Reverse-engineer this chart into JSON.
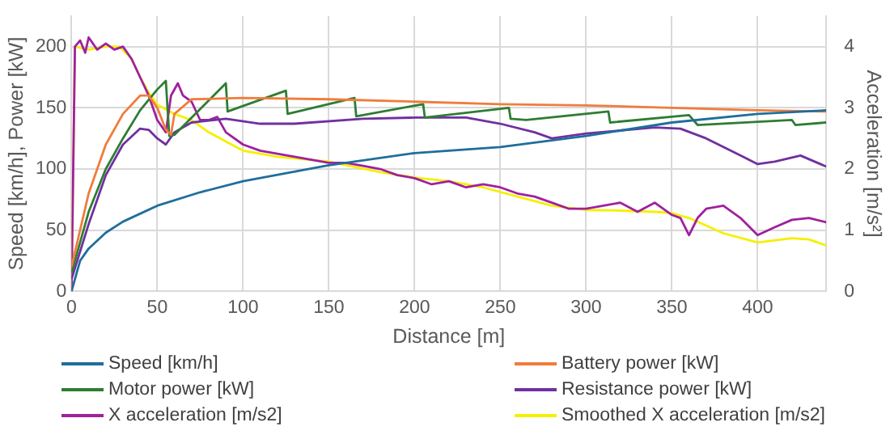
{
  "chart_data": {
    "type": "line",
    "xlabel": "Distance [m]",
    "ylabel": "Speed [km/h], Power [kW]",
    "y2label": "Acceleration [m/s²]",
    "xlim": [
      0,
      440
    ],
    "xticks": [
      0,
      50,
      100,
      150,
      200,
      250,
      300,
      350,
      400
    ],
    "ylim": [
      0,
      225
    ],
    "yticks": [
      0,
      50,
      100,
      150,
      200
    ],
    "y2lim": [
      0,
      4.5
    ],
    "y2ticks": [
      0,
      1,
      2,
      3,
      4
    ],
    "grid": true,
    "legend": "bottom",
    "marker": "none",
    "line_style": "solid",
    "series": [
      {
        "name": "Speed [km/h]",
        "color": "#1f6e9c",
        "x": [
          0,
          5,
          10,
          20,
          30,
          50,
          75,
          100,
          150,
          200,
          250,
          300,
          350,
          400,
          440
        ],
        "values": [
          0,
          25,
          35,
          48,
          57,
          70,
          81,
          90,
          103,
          113,
          118,
          127,
          138,
          145,
          148
        ]
      },
      {
        "name": "Battery power [kW]",
        "color": "#f07c3c",
        "x": [
          0,
          10,
          20,
          30,
          40,
          45,
          50,
          55,
          58,
          60,
          70,
          100,
          150,
          200,
          250,
          300,
          350,
          400,
          440
        ],
        "values": [
          20,
          80,
          120,
          145,
          160,
          160,
          150,
          132,
          128,
          145,
          157,
          158,
          157,
          155,
          153,
          152,
          150,
          148,
          147
        ]
      },
      {
        "name": "Motor power [kW]",
        "color": "#2e7d32",
        "x": [
          0,
          10,
          20,
          30,
          40,
          50,
          55,
          57,
          60,
          90,
          91,
          125,
          126,
          165,
          166,
          205,
          206,
          255,
          256,
          265,
          313,
          314,
          360,
          365,
          420,
          422,
          440
        ],
        "values": [
          15,
          65,
          100,
          125,
          148,
          165,
          172,
          127,
          128,
          170,
          147,
          164,
          145,
          158,
          143,
          153,
          142,
          150,
          141,
          140,
          147,
          138,
          144,
          136,
          140,
          136,
          138
        ]
      },
      {
        "name": "Resistance power [kW]",
        "color": "#7030a0",
        "x": [
          0,
          10,
          20,
          30,
          40,
          45,
          50,
          55,
          60,
          70,
          90,
          110,
          130,
          170,
          200,
          230,
          250,
          270,
          280,
          300,
          340,
          355,
          370,
          390,
          400,
          410,
          425,
          440
        ],
        "values": [
          10,
          55,
          95,
          120,
          133,
          132,
          125,
          120,
          130,
          138,
          141,
          137,
          137,
          141,
          142,
          142,
          137,
          130,
          125,
          129,
          134,
          133,
          125,
          111,
          104,
          106,
          111,
          102
        ]
      },
      {
        "name": "X acceleration [m/s2]",
        "color": "#a020a0",
        "axis": "y2",
        "x": [
          0,
          2,
          5,
          8,
          10,
          15,
          20,
          25,
          30,
          35,
          40,
          45,
          50,
          55,
          58,
          62,
          65,
          70,
          75,
          80,
          85,
          90,
          100,
          110,
          120,
          130,
          140,
          150,
          160,
          170,
          180,
          190,
          200,
          210,
          220,
          230,
          240,
          250,
          260,
          270,
          280,
          290,
          300,
          310,
          320,
          330,
          340,
          350,
          355,
          360,
          365,
          370,
          380,
          390,
          400,
          410,
          420,
          430,
          440
        ],
        "values": [
          0,
          4.0,
          4.1,
          3.9,
          4.15,
          3.95,
          4.05,
          3.95,
          4.0,
          3.8,
          3.5,
          3.2,
          2.8,
          2.6,
          3.2,
          3.4,
          3.2,
          3.1,
          2.8,
          2.8,
          2.85,
          2.6,
          2.4,
          2.3,
          2.25,
          2.2,
          2.15,
          2.1,
          2.1,
          2.05,
          2.0,
          1.9,
          1.85,
          1.75,
          1.8,
          1.7,
          1.75,
          1.7,
          1.6,
          1.55,
          1.45,
          1.35,
          1.35,
          1.4,
          1.45,
          1.3,
          1.45,
          1.25,
          1.2,
          0.92,
          1.2,
          1.35,
          1.4,
          1.2,
          0.92,
          1.05,
          1.17,
          1.2,
          1.13
        ]
      },
      {
        "name": "Smoothed X acceleration [m/s2]",
        "color": "#f5f000",
        "axis": "y2",
        "x": [
          0,
          2,
          10,
          20,
          28,
          35,
          40,
          45,
          50,
          60,
          70,
          80,
          90,
          100,
          120,
          150,
          180,
          200,
          220,
          240,
          260,
          280,
          300,
          320,
          340,
          350,
          360,
          380,
          400,
          420,
          430,
          440
        ],
        "values": [
          0,
          4.0,
          3.95,
          4.0,
          4.0,
          3.8,
          3.5,
          3.25,
          3.05,
          2.9,
          2.8,
          2.6,
          2.45,
          2.3,
          2.2,
          2.12,
          1.95,
          1.86,
          1.8,
          1.7,
          1.55,
          1.4,
          1.33,
          1.32,
          1.3,
          1.28,
          1.2,
          0.95,
          0.8,
          0.87,
          0.85,
          0.75
        ]
      }
    ]
  }
}
